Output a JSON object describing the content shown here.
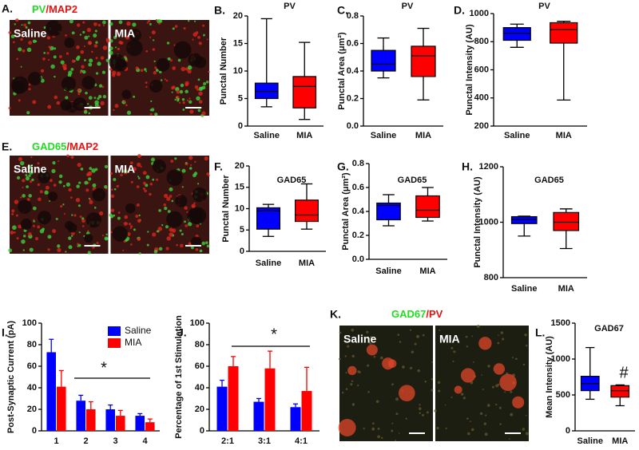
{
  "images": [
    {
      "letter": "A.",
      "title": [
        {
          "text": "PV",
          "color": "#22dd22"
        },
        {
          "text": "/MAP2",
          "color": "#ee1111"
        }
      ],
      "labels": [
        "Saline",
        "MIA"
      ]
    },
    {
      "letter": "E.",
      "title": [
        {
          "text": "GAD65",
          "color": "#22dd22"
        },
        {
          "text": "/MAP2",
          "color": "#ee1111"
        }
      ],
      "labels": [
        "Saline",
        "MIA"
      ]
    },
    {
      "letter": "K.",
      "title": [
        {
          "text": "GAD67",
          "color": "#22dd22"
        },
        {
          "text": "/PV",
          "color": "#ee1111"
        }
      ],
      "labels": [
        "Saline",
        "MIA"
      ]
    }
  ],
  "chart_data": [
    {
      "type": "box",
      "letter": "B.",
      "title": "PV",
      "y_label": "Punctal Number",
      "categories": [
        "Saline",
        "MIA"
      ],
      "colors": [
        "#0000ff",
        "#ff0000"
      ],
      "boxes": [
        {
          "min": 3.5,
          "q1": 5,
          "median": 6.3,
          "q3": 7.8,
          "max": 19.5
        },
        {
          "min": 1.2,
          "q1": 3.3,
          "median": 7.2,
          "q3": 9,
          "max": 15.2
        }
      ],
      "ylim": [
        0,
        20
      ],
      "yticks": [
        0,
        5,
        10,
        15,
        20
      ]
    },
    {
      "type": "box",
      "letter": "C.",
      "title": "PV",
      "y_label": "Punctal Area (μm²)",
      "categories": [
        "Saline",
        "MIA"
      ],
      "colors": [
        "#0000ff",
        "#ff0000"
      ],
      "boxes": [
        {
          "min": 0.35,
          "q1": 0.4,
          "median": 0.45,
          "q3": 0.55,
          "max": 0.64
        },
        {
          "min": 0.19,
          "q1": 0.36,
          "median": 0.51,
          "q3": 0.58,
          "max": 0.71
        }
      ],
      "ylim": [
        0,
        0.8
      ],
      "yticks": [
        {
          "value": 0,
          "label": "0.0"
        },
        0.2,
        0.4,
        0.6,
        0.8
      ]
    },
    {
      "type": "box",
      "letter": "D.",
      "title": "PV",
      "y_label": "Punctal Intensity (AU)",
      "categories": [
        "Saline",
        "MIA"
      ],
      "colors": [
        "#0000ff",
        "#ff0000"
      ],
      "boxes": [
        {
          "min": 760,
          "q1": 810,
          "median": 860,
          "q3": 900,
          "max": 925
        },
        {
          "min": 385,
          "q1": 790,
          "median": 885,
          "q3": 935,
          "max": 945
        }
      ],
      "ylim": [
        200,
        1000
      ],
      "yticks": [
        200,
        400,
        600,
        800,
        1000
      ]
    },
    {
      "type": "box",
      "letter": "F.",
      "title": "GAD65",
      "y_label": "Punctal Number",
      "categories": [
        "Saline",
        "MIA"
      ],
      "colors": [
        "#0000ff",
        "#ff0000"
      ],
      "boxes": [
        {
          "min": 3.5,
          "q1": 5.2,
          "median": 9.5,
          "q3": 10.2,
          "max": 11
        },
        {
          "min": 5.2,
          "q1": 7,
          "median": 8.5,
          "q3": 12,
          "max": 15.8
        }
      ],
      "ylim": [
        0,
        20
      ],
      "yticks": [
        0,
        5,
        10,
        15,
        20
      ]
    },
    {
      "type": "box",
      "letter": "G.",
      "title": "GAD65",
      "y_label": "Punctal Area (μm²)",
      "categories": [
        "Saline",
        "MIA"
      ],
      "colors": [
        "#0000ff",
        "#ff0000"
      ],
      "boxes": [
        {
          "min": 0.28,
          "q1": 0.33,
          "median": 0.45,
          "q3": 0.47,
          "max": 0.54
        },
        {
          "min": 0.32,
          "q1": 0.35,
          "median": 0.41,
          "q3": 0.53,
          "max": 0.6
        }
      ],
      "ylim": [
        0,
        0.8
      ],
      "yticks": [
        {
          "value": 0,
          "label": "0.0"
        },
        0.2,
        0.4,
        0.6,
        0.8
      ]
    },
    {
      "type": "box",
      "letter": "H.",
      "title": "GAD65",
      "y_label": "Punctal Intensity (AU)",
      "categories": [
        "Saline",
        "MIA"
      ],
      "colors": [
        "#0000ff",
        "#ff0000"
      ],
      "boxes": [
        {
          "min": 950,
          "q1": 995,
          "median": 1010,
          "q3": 1020,
          "max": 1022
        },
        {
          "min": 905,
          "q1": 970,
          "median": 1000,
          "q3": 1035,
          "max": 1048
        }
      ],
      "ylim": [
        800,
        1200
      ],
      "yticks": [
        800,
        1000,
        1200
      ]
    },
    {
      "type": "bar",
      "letter": "I.",
      "y_label": "Post-Synaptic Current (pA)",
      "categories": [
        "1",
        "2",
        "3",
        "4"
      ],
      "series": [
        {
          "name": "Saline",
          "color": "#0000ff",
          "values": [
            73,
            28,
            20,
            14
          ],
          "errors": [
            12,
            5,
            4,
            2
          ]
        },
        {
          "name": "MIA",
          "color": "#ff0000",
          "values": [
            41,
            20,
            14,
            8
          ],
          "errors": [
            15,
            7,
            5,
            3
          ]
        }
      ],
      "ylim": [
        0,
        100
      ],
      "yticks": [
        0,
        20,
        40,
        60,
        80,
        100
      ],
      "legend": "top-right",
      "annotation": "*"
    },
    {
      "type": "bar",
      "letter": "J.",
      "y_label": "Percentage of 1st Stimulation",
      "categories": [
        "2:1",
        "3:1",
        "4:1"
      ],
      "series": [
        {
          "name": "Saline",
          "color": "#0000ff",
          "values": [
            41,
            27,
            22
          ],
          "errors": [
            6,
            3,
            3
          ]
        },
        {
          "name": "MIA",
          "color": "#ff0000",
          "values": [
            60,
            58,
            37
          ],
          "errors": [
            9,
            16,
            22
          ]
        }
      ],
      "ylim": [
        0,
        100
      ],
      "yticks": [
        0,
        20,
        40,
        60,
        80,
        100
      ],
      "annotation": "*"
    },
    {
      "type": "box",
      "letter": "L.",
      "title": "GAD67",
      "y_label": "Mean Intensity (AU)",
      "categories": [
        "Saline",
        "MIA"
      ],
      "colors": [
        "#0000ff",
        "#ff0000"
      ],
      "boxes": [
        {
          "min": 440,
          "q1": 560,
          "median": 660,
          "q3": 760,
          "max": 1160
        },
        {
          "min": 350,
          "q1": 470,
          "median": 560,
          "q3": 630,
          "max": 640
        }
      ],
      "ylim": [
        0,
        1500
      ],
      "yticks": [
        0,
        500,
        1000,
        1500
      ],
      "annotation": "#"
    }
  ]
}
